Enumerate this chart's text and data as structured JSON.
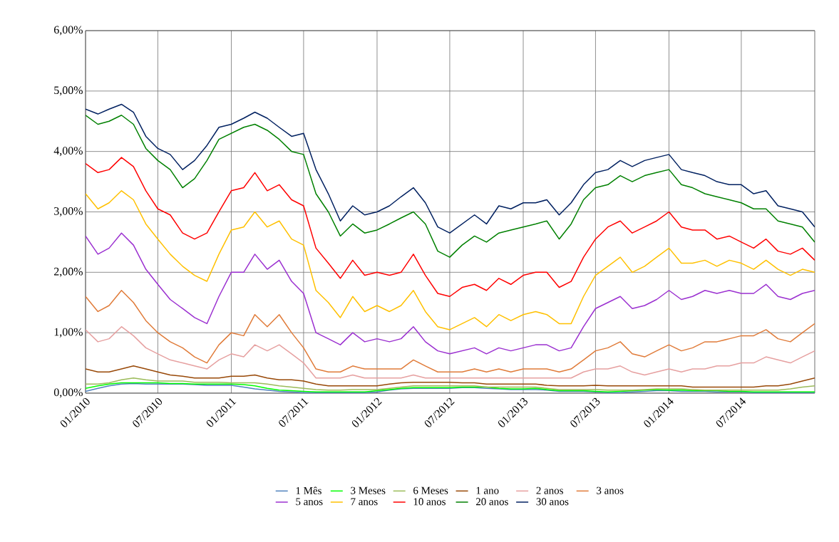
{
  "chart_data": {
    "type": "line",
    "x": [
      "2010-01",
      "2010-02",
      "2010-03",
      "2010-04",
      "2010-05",
      "2010-06",
      "2010-07",
      "2010-08",
      "2010-09",
      "2010-10",
      "2010-11",
      "2010-12",
      "2011-01",
      "2011-02",
      "2011-03",
      "2011-04",
      "2011-05",
      "2011-06",
      "2011-07",
      "2011-08",
      "2011-09",
      "2011-10",
      "2011-11",
      "2011-12",
      "2012-01",
      "2012-02",
      "2012-03",
      "2012-04",
      "2012-05",
      "2012-06",
      "2012-07",
      "2012-08",
      "2012-09",
      "2012-10",
      "2012-11",
      "2012-12",
      "2013-01",
      "2013-02",
      "2013-03",
      "2013-04",
      "2013-05",
      "2013-06",
      "2013-07",
      "2013-08",
      "2013-09",
      "2013-10",
      "2013-11",
      "2013-12",
      "2014-01",
      "2014-02",
      "2014-03",
      "2014-04",
      "2014-05",
      "2014-06",
      "2014-07",
      "2014-08",
      "2014-09",
      "2014-10",
      "2014-11",
      "2014-12",
      "2015-01"
    ],
    "xlim": [
      "2010-01",
      "2015-01"
    ],
    "xticks": [
      {
        "value": "2010-01",
        "label": "01/2010"
      },
      {
        "value": "2010-07",
        "label": "07/2010"
      },
      {
        "value": "2011-01",
        "label": "01/2011"
      },
      {
        "value": "2011-07",
        "label": "07/2011"
      },
      {
        "value": "2012-01",
        "label": "01/2012"
      },
      {
        "value": "2012-07",
        "label": "07/2012"
      },
      {
        "value": "2013-01",
        "label": "01/2013"
      },
      {
        "value": "2013-07",
        "label": "07/2013"
      },
      {
        "value": "2014-01",
        "label": "01/2014"
      },
      {
        "value": "2014-07",
        "label": "07/2014"
      }
    ],
    "ylim": [
      0,
      6
    ],
    "yticks": [
      {
        "value": 0,
        "label": "0,00%"
      },
      {
        "value": 1,
        "label": "1,00%"
      },
      {
        "value": 2,
        "label": "2,00%"
      },
      {
        "value": 3,
        "label": "3,00%"
      },
      {
        "value": 4,
        "label": "4,00%"
      },
      {
        "value": 5,
        "label": "5,00%"
      },
      {
        "value": 6,
        "label": "6,00%"
      }
    ],
    "grid": true,
    "legend": "bottom",
    "marker": "none",
    "line_style": "solid",
    "series": [
      {
        "name": "1 Mês",
        "color": "#4f81bd",
        "values": [
          0.03,
          0.08,
          0.12,
          0.15,
          0.16,
          0.15,
          0.15,
          0.15,
          0.15,
          0.14,
          0.13,
          0.13,
          0.13,
          0.1,
          0.07,
          0.05,
          0.03,
          0.02,
          0.01,
          0.01,
          0.01,
          0.01,
          0.01,
          0.01,
          0.02,
          0.05,
          0.07,
          0.08,
          0.08,
          0.08,
          0.08,
          0.09,
          0.09,
          0.08,
          0.07,
          0.06,
          0.06,
          0.06,
          0.05,
          0.03,
          0.03,
          0.03,
          0.02,
          0.01,
          0.01,
          0.02,
          0.03,
          0.04,
          0.04,
          0.03,
          0.03,
          0.03,
          0.02,
          0.02,
          0.02,
          0.01,
          0.01,
          0.01,
          0.01,
          0.01,
          0.01
        ]
      },
      {
        "name": "3 Meses",
        "color": "#00ff00",
        "values": [
          0.08,
          0.12,
          0.15,
          0.17,
          0.17,
          0.17,
          0.17,
          0.16,
          0.16,
          0.15,
          0.15,
          0.15,
          0.15,
          0.14,
          0.12,
          0.08,
          0.05,
          0.04,
          0.03,
          0.02,
          0.02,
          0.02,
          0.02,
          0.02,
          0.04,
          0.06,
          0.08,
          0.09,
          0.09,
          0.09,
          0.09,
          0.1,
          0.1,
          0.1,
          0.08,
          0.07,
          0.07,
          0.08,
          0.06,
          0.04,
          0.04,
          0.04,
          0.03,
          0.02,
          0.03,
          0.04,
          0.05,
          0.06,
          0.05,
          0.05,
          0.04,
          0.04,
          0.04,
          0.03,
          0.03,
          0.02,
          0.02,
          0.02,
          0.02,
          0.02,
          0.02
        ]
      },
      {
        "name": "6 Meses",
        "color": "#9bbb59",
        "values": [
          0.15,
          0.15,
          0.17,
          0.22,
          0.25,
          0.22,
          0.2,
          0.2,
          0.2,
          0.18,
          0.18,
          0.18,
          0.17,
          0.17,
          0.17,
          0.15,
          0.12,
          0.1,
          0.08,
          0.06,
          0.05,
          0.05,
          0.06,
          0.06,
          0.06,
          0.08,
          0.1,
          0.12,
          0.12,
          0.12,
          0.12,
          0.12,
          0.12,
          0.1,
          0.1,
          0.1,
          0.1,
          0.1,
          0.08,
          0.06,
          0.06,
          0.06,
          0.06,
          0.05,
          0.05,
          0.05,
          0.06,
          0.07,
          0.07,
          0.07,
          0.06,
          0.05,
          0.05,
          0.05,
          0.05,
          0.05,
          0.05,
          0.05,
          0.07,
          0.1,
          0.12
        ]
      },
      {
        "name": "1 ano",
        "color": "#984807",
        "values": [
          0.4,
          0.35,
          0.35,
          0.4,
          0.45,
          0.4,
          0.35,
          0.3,
          0.28,
          0.25,
          0.25,
          0.25,
          0.28,
          0.28,
          0.3,
          0.25,
          0.22,
          0.22,
          0.2,
          0.15,
          0.12,
          0.12,
          0.12,
          0.12,
          0.12,
          0.15,
          0.17,
          0.18,
          0.18,
          0.18,
          0.18,
          0.17,
          0.17,
          0.15,
          0.15,
          0.15,
          0.15,
          0.15,
          0.13,
          0.12,
          0.12,
          0.12,
          0.13,
          0.12,
          0.12,
          0.12,
          0.12,
          0.12,
          0.12,
          0.12,
          0.1,
          0.1,
          0.1,
          0.1,
          0.1,
          0.1,
          0.12,
          0.12,
          0.15,
          0.2,
          0.25
        ]
      },
      {
        "name": "2 anos",
        "color": "#e6a0a0",
        "values": [
          1.05,
          0.85,
          0.9,
          1.1,
          0.95,
          0.75,
          0.65,
          0.55,
          0.5,
          0.45,
          0.4,
          0.55,
          0.65,
          0.6,
          0.8,
          0.7,
          0.8,
          0.65,
          0.5,
          0.25,
          0.25,
          0.25,
          0.3,
          0.25,
          0.25,
          0.25,
          0.25,
          0.3,
          0.25,
          0.25,
          0.25,
          0.25,
          0.25,
          0.25,
          0.25,
          0.25,
          0.25,
          0.25,
          0.25,
          0.25,
          0.25,
          0.35,
          0.4,
          0.4,
          0.45,
          0.35,
          0.3,
          0.35,
          0.4,
          0.35,
          0.4,
          0.4,
          0.45,
          0.45,
          0.5,
          0.5,
          0.6,
          0.55,
          0.5,
          0.6,
          0.7
        ]
      },
      {
        "name": "3 anos",
        "color": "#e07b39",
        "values": [
          1.6,
          1.35,
          1.45,
          1.7,
          1.5,
          1.2,
          1.0,
          0.85,
          0.75,
          0.6,
          0.5,
          0.8,
          1.0,
          0.95,
          1.3,
          1.1,
          1.3,
          1.0,
          0.75,
          0.4,
          0.35,
          0.35,
          0.45,
          0.4,
          0.4,
          0.4,
          0.4,
          0.55,
          0.45,
          0.35,
          0.35,
          0.35,
          0.4,
          0.35,
          0.4,
          0.35,
          0.4,
          0.4,
          0.4,
          0.35,
          0.4,
          0.55,
          0.7,
          0.75,
          0.85,
          0.65,
          0.6,
          0.7,
          0.8,
          0.7,
          0.75,
          0.85,
          0.85,
          0.9,
          0.95,
          0.95,
          1.05,
          0.9,
          0.85,
          1.0,
          1.15
        ]
      },
      {
        "name": "5 anos",
        "color": "#9b30d0",
        "values": [
          2.6,
          2.3,
          2.4,
          2.65,
          2.45,
          2.05,
          1.8,
          1.55,
          1.4,
          1.25,
          1.15,
          1.6,
          2.0,
          2.0,
          2.3,
          2.05,
          2.2,
          1.85,
          1.65,
          1.0,
          0.9,
          0.8,
          1.0,
          0.85,
          0.9,
          0.85,
          0.9,
          1.1,
          0.85,
          0.7,
          0.65,
          0.7,
          0.75,
          0.65,
          0.75,
          0.7,
          0.75,
          0.8,
          0.8,
          0.7,
          0.75,
          1.1,
          1.4,
          1.5,
          1.6,
          1.4,
          1.45,
          1.55,
          1.7,
          1.55,
          1.6,
          1.7,
          1.65,
          1.7,
          1.65,
          1.65,
          1.8,
          1.6,
          1.55,
          1.65,
          1.7
        ]
      },
      {
        "name": "7 anos",
        "color": "#ffc000",
        "values": [
          3.3,
          3.05,
          3.15,
          3.35,
          3.2,
          2.8,
          2.55,
          2.3,
          2.1,
          1.95,
          1.85,
          2.3,
          2.7,
          2.75,
          3.0,
          2.75,
          2.85,
          2.55,
          2.45,
          1.7,
          1.5,
          1.25,
          1.6,
          1.35,
          1.45,
          1.35,
          1.45,
          1.7,
          1.35,
          1.1,
          1.05,
          1.15,
          1.25,
          1.1,
          1.3,
          1.2,
          1.3,
          1.35,
          1.3,
          1.15,
          1.15,
          1.6,
          1.95,
          2.1,
          2.25,
          2.0,
          2.1,
          2.25,
          2.4,
          2.15,
          2.15,
          2.2,
          2.1,
          2.2,
          2.15,
          2.05,
          2.2,
          2.05,
          1.95,
          2.05,
          2.0
        ]
      },
      {
        "name": "10 anos",
        "color": "#ff0000",
        "values": [
          3.8,
          3.65,
          3.7,
          3.9,
          3.75,
          3.35,
          3.05,
          2.95,
          2.65,
          2.55,
          2.65,
          3.0,
          3.35,
          3.4,
          3.65,
          3.35,
          3.45,
          3.2,
          3.1,
          2.4,
          2.15,
          1.9,
          2.2,
          1.95,
          2.0,
          1.95,
          2.0,
          2.3,
          1.95,
          1.65,
          1.6,
          1.75,
          1.8,
          1.7,
          1.9,
          1.8,
          1.95,
          2.0,
          2.0,
          1.75,
          1.85,
          2.25,
          2.55,
          2.75,
          2.85,
          2.65,
          2.75,
          2.85,
          3.0,
          2.75,
          2.7,
          2.7,
          2.55,
          2.6,
          2.5,
          2.4,
          2.55,
          2.35,
          2.3,
          2.4,
          2.2
        ]
      },
      {
        "name": "20 anos",
        "color": "#008000",
        "values": [
          4.6,
          4.45,
          4.5,
          4.6,
          4.45,
          4.05,
          3.85,
          3.7,
          3.4,
          3.55,
          3.85,
          4.2,
          4.3,
          4.4,
          4.45,
          4.35,
          4.2,
          4.0,
          3.95,
          3.3,
          3.0,
          2.6,
          2.8,
          2.65,
          2.7,
          2.8,
          2.9,
          3.0,
          2.8,
          2.35,
          2.25,
          2.45,
          2.6,
          2.5,
          2.65,
          2.7,
          2.75,
          2.8,
          2.85,
          2.55,
          2.8,
          3.2,
          3.4,
          3.45,
          3.6,
          3.5,
          3.6,
          3.65,
          3.7,
          3.45,
          3.4,
          3.3,
          3.25,
          3.2,
          3.15,
          3.05,
          3.05,
          2.85,
          2.8,
          2.75,
          2.5
        ]
      },
      {
        "name": "30 anos",
        "color": "#002060",
        "values": [
          4.7,
          4.62,
          4.7,
          4.78,
          4.65,
          4.25,
          4.05,
          3.95,
          3.7,
          3.85,
          4.1,
          4.4,
          4.45,
          4.55,
          4.65,
          4.55,
          4.4,
          4.25,
          4.3,
          3.7,
          3.3,
          2.85,
          3.1,
          2.95,
          3.0,
          3.1,
          3.25,
          3.4,
          3.15,
          2.75,
          2.65,
          2.8,
          2.95,
          2.8,
          3.1,
          3.05,
          3.15,
          3.15,
          3.2,
          2.95,
          3.15,
          3.45,
          3.65,
          3.7,
          3.85,
          3.75,
          3.85,
          3.9,
          3.95,
          3.7,
          3.65,
          3.6,
          3.5,
          3.45,
          3.45,
          3.3,
          3.35,
          3.1,
          3.05,
          3.0,
          2.75
        ]
      }
    ]
  }
}
